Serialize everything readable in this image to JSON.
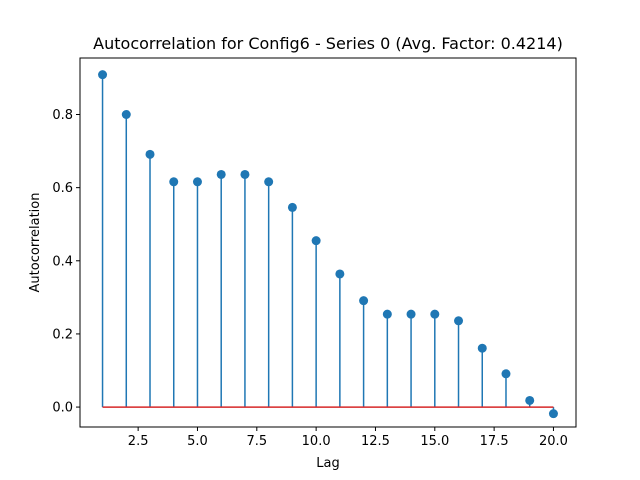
{
  "chart_data": {
    "type": "stem",
    "title": "Autocorrelation for Config6 - Series 0 (Avg. Factor: 0.4214)",
    "xlabel": "Lag",
    "ylabel": "Autocorrelation",
    "xlim": [
      0.05,
      20.95
    ],
    "ylim": [
      -0.0545,
      0.9545
    ],
    "x_ticks": [
      2.5,
      5.0,
      7.5,
      10.0,
      12.5,
      15.0,
      17.5,
      20.0
    ],
    "x_tick_labels": [
      "2.5",
      "5.0",
      "7.5",
      "10.0",
      "12.5",
      "15.0",
      "17.5",
      "20.0"
    ],
    "y_ticks": [
      0.0,
      0.2,
      0.4,
      0.6,
      0.8
    ],
    "y_tick_labels": [
      "0.0",
      "0.2",
      "0.4",
      "0.6",
      "0.8"
    ],
    "grid": false,
    "baseline": 0,
    "colors": {
      "stem": "#1f77b4",
      "marker": "#1f77b4",
      "baseline": "#d62728"
    },
    "x": [
      1,
      2,
      3,
      4,
      5,
      6,
      7,
      8,
      9,
      10,
      11,
      12,
      13,
      14,
      15,
      16,
      17,
      18,
      19,
      20
    ],
    "values": [
      0.909,
      0.8,
      0.691,
      0.616,
      0.616,
      0.636,
      0.636,
      0.616,
      0.546,
      0.455,
      0.364,
      0.291,
      0.254,
      0.254,
      0.254,
      0.236,
      0.161,
      0.091,
      0.018,
      -0.018
    ]
  }
}
